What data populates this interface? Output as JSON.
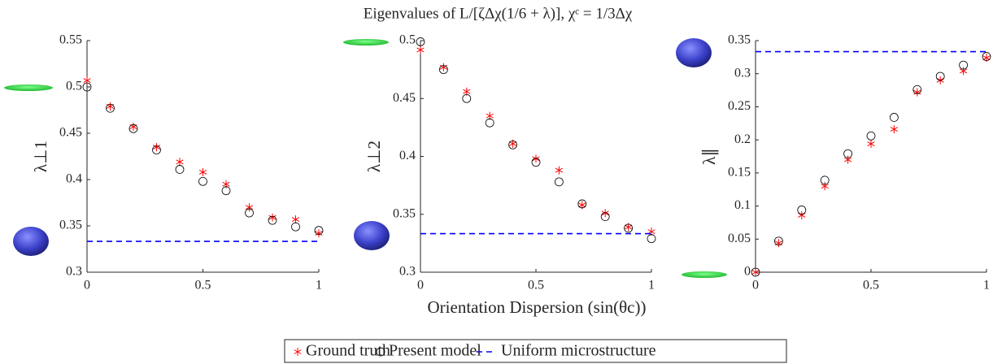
{
  "title": "Eigenvalues of L/[ζΔχ(1/6 + λ)],    χᶜ = 1/3Δχ",
  "xlabel": "Orientation Dispersion (sin(θc))",
  "chart_data": [
    {
      "type": "scatter",
      "ylabel": "λ⊥1",
      "x": [
        0,
        0.1,
        0.2,
        0.3,
        0.4,
        0.5,
        0.6,
        0.7,
        0.8,
        0.9,
        1
      ],
      "xlim": [
        0,
        1
      ],
      "xticks": [
        0,
        0.5,
        1
      ],
      "ylim": [
        0.3,
        0.55
      ],
      "yticks": [
        0.3,
        0.35,
        0.4,
        0.45,
        0.5,
        0.55
      ],
      "series": [
        {
          "name": "Ground truth",
          "color": "#ff0000",
          "marker": "*",
          "values": [
            0.507,
            0.479,
            0.457,
            0.435,
            0.419,
            0.408,
            0.395,
            0.37,
            0.359,
            0.357,
            0.342
          ]
        },
        {
          "name": "Present model",
          "color": "#000000",
          "marker": "o",
          "values": [
            0.5,
            0.477,
            0.455,
            0.432,
            0.411,
            0.398,
            0.388,
            0.364,
            0.356,
            0.349,
            0.345
          ]
        },
        {
          "name": "Uniform microstructure",
          "color": "#0000ff",
          "linestyle": "--",
          "hline": 0.3333
        }
      ]
    },
    {
      "type": "scatter",
      "ylabel": "λ⊥2",
      "x": [
        0,
        0.1,
        0.2,
        0.3,
        0.4,
        0.5,
        0.6,
        0.7,
        0.8,
        0.9,
        1
      ],
      "xlim": [
        0,
        1
      ],
      "xticks": [
        0,
        0.5,
        1
      ],
      "ylim": [
        0.3,
        0.5
      ],
      "yticks": [
        0.3,
        0.35,
        0.4,
        0.45,
        0.5
      ],
      "series": [
        {
          "name": "Ground truth",
          "color": "#ff0000",
          "marker": "*",
          "values": [
            0.492,
            0.477,
            0.456,
            0.435,
            0.411,
            0.398,
            0.388,
            0.358,
            0.351,
            0.339,
            0.335
          ]
        },
        {
          "name": "Present model",
          "color": "#000000",
          "marker": "o",
          "values": [
            0.499,
            0.475,
            0.45,
            0.429,
            0.41,
            0.395,
            0.378,
            0.359,
            0.348,
            0.338,
            0.329
          ]
        },
        {
          "name": "Uniform microstructure",
          "color": "#0000ff",
          "linestyle": "--",
          "hline": 0.3333
        }
      ]
    },
    {
      "type": "scatter",
      "ylabel": "λ∥",
      "x": [
        0,
        0.1,
        0.2,
        0.3,
        0.4,
        0.5,
        0.6,
        0.7,
        0.8,
        0.9,
        1
      ],
      "xlim": [
        0,
        1
      ],
      "xticks": [
        0,
        0.5,
        1
      ],
      "ylim": [
        0,
        0.35
      ],
      "yticks": [
        0,
        0.05,
        0.1,
        0.15,
        0.2,
        0.25,
        0.3,
        0.35
      ],
      "series": [
        {
          "name": "Ground truth",
          "color": "#ff0000",
          "marker": "*",
          "values": [
            0,
            0.044,
            0.086,
            0.13,
            0.17,
            0.194,
            0.216,
            0.272,
            0.29,
            0.304,
            0.324
          ]
        },
        {
          "name": "Present model",
          "color": "#000000",
          "marker": "o",
          "values": [
            0,
            0.047,
            0.094,
            0.139,
            0.179,
            0.206,
            0.234,
            0.276,
            0.296,
            0.313,
            0.326
          ]
        },
        {
          "name": "Uniform microstructure",
          "color": "#0000ff",
          "linestyle": "--",
          "hline": 0.3333
        }
      ]
    }
  ]
}
